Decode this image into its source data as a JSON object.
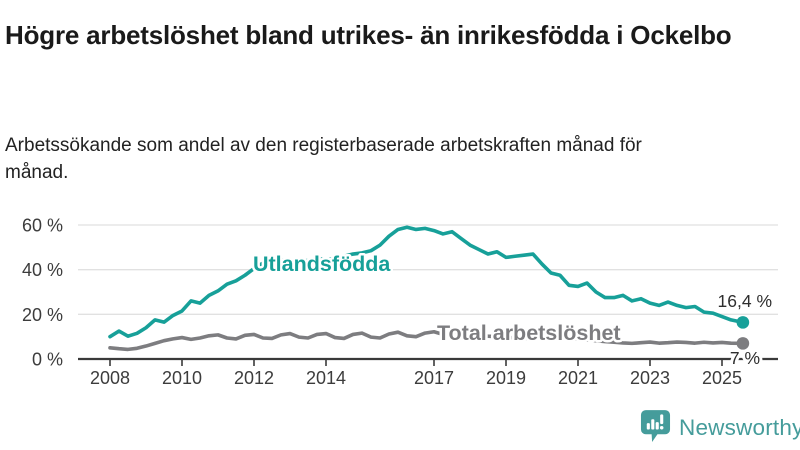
{
  "header": {
    "title": "Högre arbetslöshet bland utrikes- än inrikesfödda i Ockelbo",
    "subtitle": "Arbetssökande som andel av den registerbaserade arbetskraften månad för månad."
  },
  "chart_data": {
    "type": "line",
    "title": "Högre arbetslöshet bland utrikes- än inrikesfödda i Ockelbo",
    "xlabel": "",
    "ylabel": "",
    "grid": "horizontal",
    "legend": "inline-labels",
    "ylim": [
      0,
      62
    ],
    "y_ticks": [
      0,
      20,
      40,
      60
    ],
    "y_tick_suffix": " %",
    "x_ticks": [
      2008,
      2010,
      2012,
      2014,
      2017,
      2019,
      2021,
      2023,
      2025
    ],
    "x": [
      2008,
      2008.25,
      2008.5,
      2008.75,
      2009,
      2009.25,
      2009.5,
      2009.75,
      2010,
      2010.25,
      2010.5,
      2010.75,
      2011,
      2011.25,
      2011.5,
      2011.75,
      2012,
      2012.25,
      2012.5,
      2012.75,
      2013,
      2013.25,
      2013.5,
      2013.75,
      2014,
      2014.25,
      2014.5,
      2014.75,
      2015,
      2015.25,
      2015.5,
      2015.75,
      2016,
      2016.25,
      2016.5,
      2016.75,
      2017,
      2017.25,
      2017.5,
      2017.75,
      2018,
      2018.25,
      2018.5,
      2018.75,
      2019,
      2019.25,
      2019.5,
      2019.75,
      2020,
      2020.25,
      2020.5,
      2020.75,
      2021,
      2021.25,
      2021.5,
      2021.75,
      2022,
      2022.25,
      2022.5,
      2022.75,
      2023,
      2023.25,
      2023.5,
      2023.75,
      2024,
      2024.25,
      2024.5,
      2024.75,
      2025,
      2025.25,
      2025.58
    ],
    "series": [
      {
        "name": "Utlandsfödda",
        "color": "#17a099",
        "end_label": "16,4 %",
        "end_value": 16.4,
        "values": [
          10,
          12.5,
          10.2,
          11.5,
          14,
          17.5,
          16.5,
          19.5,
          21.5,
          26,
          25,
          28.5,
          30.5,
          33.5,
          35,
          37.5,
          40.5,
          43,
          42,
          44.5,
          43.5,
          44.5,
          44,
          45,
          44.5,
          45,
          46,
          47,
          47.5,
          48.5,
          51,
          55,
          58,
          59,
          58,
          58.5,
          57.5,
          56,
          57,
          54,
          51,
          49,
          47,
          48,
          45.5,
          46,
          46.5,
          47,
          42.5,
          38.5,
          37.5,
          33,
          32.5,
          34,
          30,
          27.5,
          27.5,
          28.5,
          26,
          27,
          25,
          24,
          25.5,
          24,
          23,
          23.5,
          21,
          20.5,
          19,
          17.5,
          16.4
        ]
      },
      {
        "name": "Total arbetslöshet",
        "color": "#7d7d80",
        "end_label": "7 %",
        "end_value": 7,
        "values": [
          5,
          4.6,
          4.3,
          4.8,
          5.8,
          7,
          8.2,
          9,
          9.6,
          8.8,
          9.4,
          10.4,
          10.8,
          9.4,
          9,
          10.6,
          11,
          9.4,
          9.2,
          10.8,
          11.4,
          9.8,
          9.4,
          11,
          11.4,
          9.6,
          9.2,
          11,
          11.6,
          9.8,
          9.4,
          11.2,
          12,
          10.4,
          10,
          11.6,
          12.2,
          11,
          12.6,
          11.6,
          11.2,
          10.6,
          10.2,
          10,
          9.8,
          9.4,
          9.2,
          9.4,
          9.6,
          10.2,
          9.8,
          9.4,
          9,
          8.6,
          8.2,
          7.8,
          7.5,
          7.2,
          7,
          7.3,
          7.6,
          7.1,
          7.3,
          7.6,
          7.4,
          7.1,
          7.5,
          7.2,
          7.4,
          7.1,
          7
        ]
      }
    ]
  },
  "footer": {
    "brand": "Newsworthy",
    "brand_color": "#459c9b",
    "logo_icon": "bar-chart-speech-bubble-icon"
  }
}
